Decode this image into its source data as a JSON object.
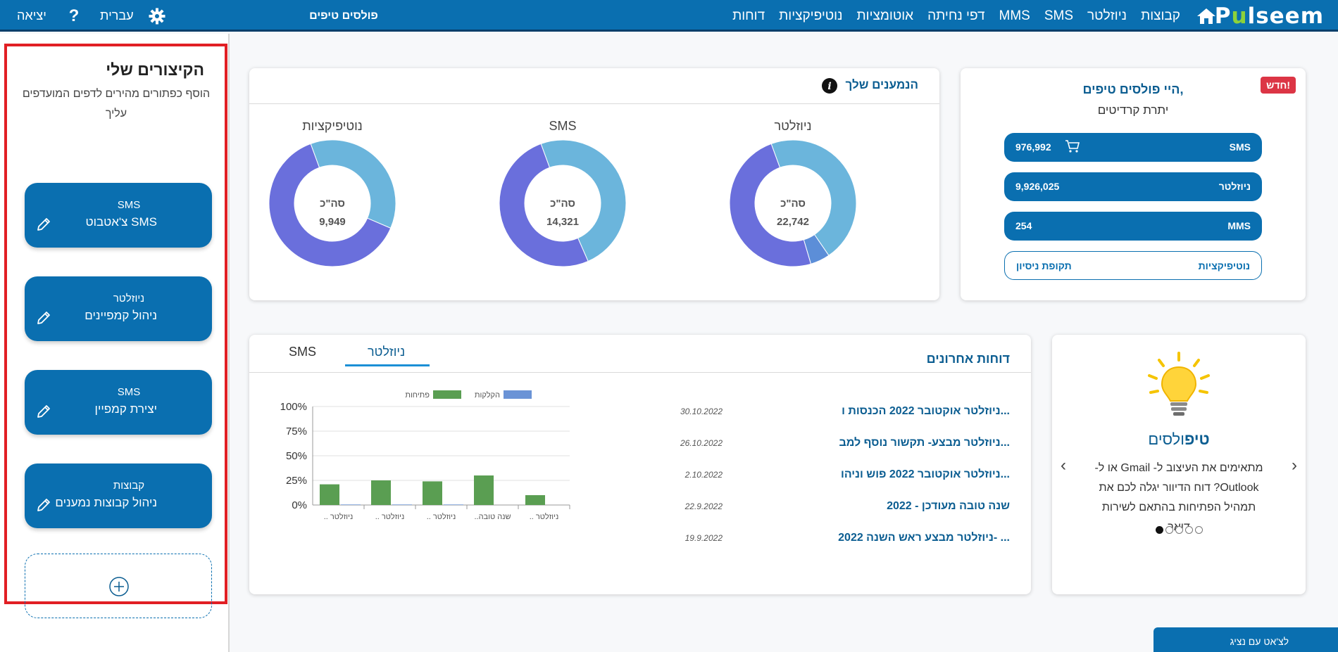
{
  "topbar": {
    "logo": "Pulseem",
    "nav": [
      "קבוצות",
      "ניוזלטר",
      "SMS",
      "MMS",
      "דפי נחיתה",
      "אוטומציות",
      "נוטיפיקציות",
      "דוחות"
    ],
    "account_name": "פולסים טיפים",
    "language": "עברית",
    "help": "?",
    "exit": "יציאה"
  },
  "shortcuts": {
    "title": "הקיצורים שלי",
    "subtitle": "הוסף כפתורים מהירים לדפים המועדפים עליך",
    "items": [
      {
        "category": "SMS",
        "label": "צ'אטבוט SMS"
      },
      {
        "category": "ניוזלטר",
        "label": "ניהול קמפיינים"
      },
      {
        "category": "SMS",
        "label": "יצירת קמפיין"
      },
      {
        "category": "קבוצות",
        "label": "ניהול קבוצות נמענים"
      }
    ]
  },
  "credits": {
    "badge": "חדש!",
    "greeting": "היי פולסים טיפים,",
    "balance_label": "יתרת קרדיטים",
    "rows": [
      {
        "channel": "SMS",
        "value": "976,992"
      },
      {
        "channel": "ניוזלטר",
        "value": "9,926,025"
      },
      {
        "channel": "MMS",
        "value": "254"
      },
      {
        "channel": "נוטיפיקציות",
        "value": "תקופת ניסיון"
      }
    ]
  },
  "subscribers": {
    "title": "הנמענים שלך",
    "total_label": "סה\"כ",
    "donuts": [
      {
        "label": "ניוזלטר",
        "total": "22,742",
        "fractions": [
          0.46,
          0.05,
          0.49
        ],
        "colors": [
          "#6bb5dc",
          "#5c8ed8",
          "#6a6fdc"
        ]
      },
      {
        "label": "SMS",
        "total": "14,321",
        "fractions": [
          0.49,
          0.51
        ],
        "colors": [
          "#6bb5dc",
          "#6a6fdc"
        ]
      },
      {
        "label": "נוטיפיקציות",
        "total": "9,949",
        "fractions": [
          0.37,
          0.63
        ],
        "colors": [
          "#6bb5dc",
          "#6a6fdc"
        ]
      }
    ]
  },
  "tips": {
    "title_bold": "טיפ",
    "title_rest": "ולסים",
    "text": "מתאימים את העיצוב ל- Gmail או ל- Outlook? דוח הדיוור יגלה לכם את תמהיל הפתיחות בהתאם לשירות דואר",
    "dots": 5,
    "active_dot": 0
  },
  "reports": {
    "title": "דוחות אחרונים",
    "tabs": [
      "ניוזלטר",
      "SMS"
    ],
    "active_tab": 0,
    "rows": [
      {
        "name": "ניוזלטר אוקטובר 2022 הכנסות ו...",
        "date": "30.10.2022"
      },
      {
        "name": "ניוזלטר מבצע- תקשור נוסף למב...",
        "date": "26.10.2022"
      },
      {
        "name": "ניוזלטר אוקטובר 2022 פוש וניהו...",
        "date": "2.10.2022"
      },
      {
        "name": "שנה טובה מעודכן - 2022",
        "date": "22.9.2022"
      },
      {
        "name": "ניוזלטר מבצע ראש השנה 2022- ...",
        "date": "19.9.2022"
      }
    ]
  },
  "chat_button": "לצ'אט עם נציג",
  "chart_data": {
    "type": "bar",
    "categories": [
      "ניוזלטר ..",
      "ניוזלטר ..",
      "ניוזלטר ..",
      "שנה טובה..",
      "ניוזלטר .."
    ],
    "series": [
      {
        "name": "פתיחות",
        "values": [
          21,
          25,
          24,
          30,
          10
        ],
        "color": "#5a9e52"
      },
      {
        "name": "הקלקות",
        "values": [
          0.5,
          0.5,
          0.5,
          0,
          0
        ],
        "color": "#6a93d6"
      }
    ],
    "yticks": [
      "0%",
      "25%",
      "50%",
      "75%",
      "100%"
    ],
    "ylim": [
      0,
      100
    ],
    "legend": "top",
    "grid": true
  }
}
